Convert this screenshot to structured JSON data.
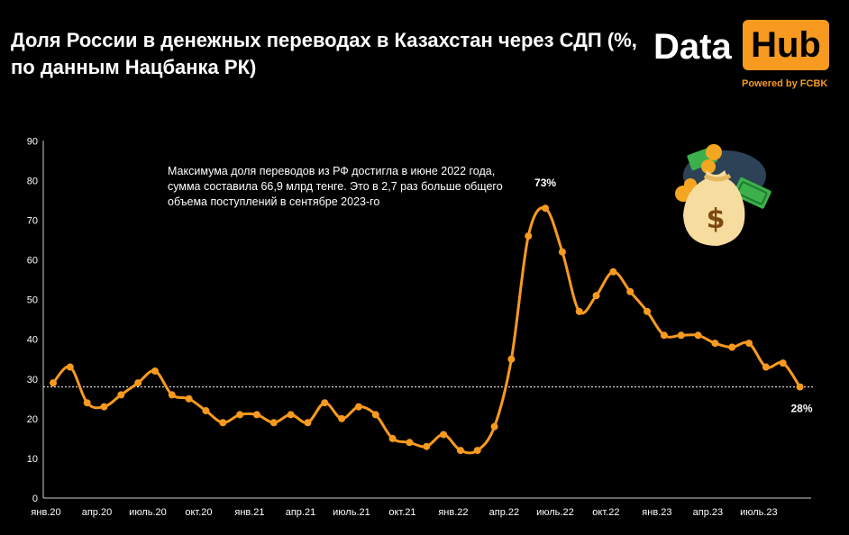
{
  "header": {
    "title": "Доля России в денежных переводах в Казахстан через СДП (%, по данным Нацбанка РК)",
    "logo_left": "Data",
    "logo_right": "Hub",
    "powered_by": "Powered by FCBK"
  },
  "annotation": "Максимума доля переводов из РФ достигла в июне 2022 года, сумма составила 66,9 млрд тенге. Это в 2,7 раз больше общего объема поступлений в сентябре 2023-го",
  "colors": {
    "line": "#f79a1f",
    "background": "#000000",
    "text": "#ffffff",
    "accent": "#f79a1f"
  },
  "chart_data": {
    "type": "line",
    "title": "Доля России в денежных переводах в Казахстан через СДП (%, по данным Нацбанка РК)",
    "xlabel": "",
    "ylabel": "",
    "ylim": [
      0,
      90
    ],
    "yticks": [
      0,
      10,
      20,
      30,
      40,
      50,
      60,
      70,
      80,
      90
    ],
    "x_tick_labels": [
      "янв.20",
      "апр.20",
      "июль.20",
      "окт.20",
      "янв.21",
      "апр.21",
      "июль.21",
      "окт.21",
      "янв.22",
      "апр.22",
      "июль.22",
      "окт.22",
      "янв.23",
      "апр.23",
      "июль.23"
    ],
    "x": [
      "янв.20",
      "фев.20",
      "мар.20",
      "апр.20",
      "май.20",
      "июн.20",
      "июль.20",
      "авг.20",
      "сен.20",
      "окт.20",
      "ноя.20",
      "дек.20",
      "янв.21",
      "фев.21",
      "мар.21",
      "апр.21",
      "май.21",
      "июн.21",
      "июль.21",
      "авг.21",
      "сен.21",
      "окт.21",
      "ноя.21",
      "дек.21",
      "янв.22",
      "фев.22",
      "мар.22",
      "апр.22",
      "май.22",
      "июн.22",
      "июль.22",
      "авг.22",
      "сен.22",
      "окт.22",
      "ноя.22",
      "дек.22",
      "янв.23",
      "фев.23",
      "мар.23",
      "апр.23",
      "май.23",
      "июн.23",
      "июль.23",
      "авг.23",
      "сен.23"
    ],
    "series": [
      {
        "values": [
          29,
          33,
          24,
          23,
          26,
          29,
          32,
          26,
          25,
          22,
          19,
          21,
          21,
          19,
          21,
          19,
          24,
          20,
          23,
          21,
          15,
          14,
          13,
          16,
          12,
          12,
          18,
          35,
          66,
          73,
          62,
          47,
          51,
          57,
          52,
          47,
          41,
          41,
          41,
          39,
          38,
          39,
          33,
          34,
          28
        ]
      }
    ],
    "reference_line": 28,
    "data_labels": [
      {
        "index": 29,
        "text": "73%"
      },
      {
        "index": 44,
        "text": "28%"
      }
    ],
    "grid": false,
    "legend": "none"
  }
}
